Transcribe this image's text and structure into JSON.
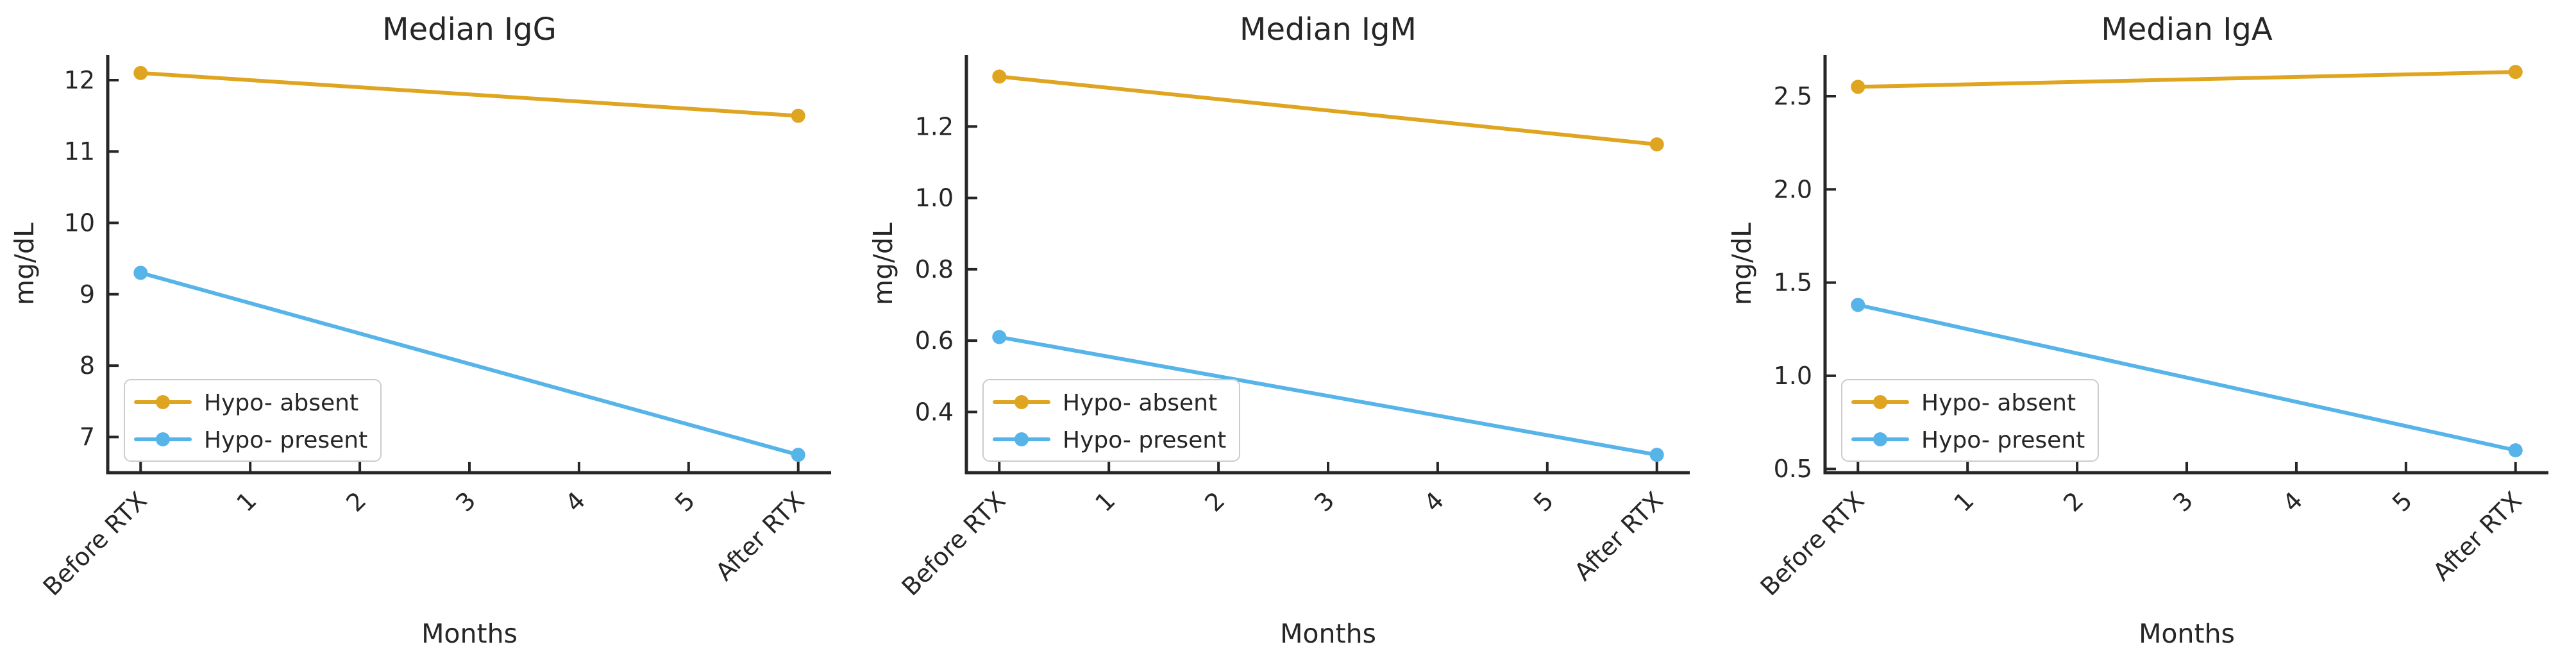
{
  "figure": {
    "background": "#ffffff",
    "text_color": "#262626",
    "spine_color": "#262626",
    "legend_border_color": "#cccccc",
    "legend_background": "rgba(255,255,255,0.85)"
  },
  "colors": {
    "hypo_absent": "#DFA520",
    "hypo_present": "#56B4E9"
  },
  "chart_data": [
    {
      "id": "median-igg",
      "type": "line",
      "title": "Median IgG",
      "xlabel": "Months",
      "ylabel": "mg/dL",
      "x_tick_positions": [
        0,
        1,
        2,
        3,
        4,
        5,
        6
      ],
      "x_tick_labels": [
        "Before RTX",
        "1",
        "2",
        "3",
        "4",
        "5",
        "After RTX"
      ],
      "xlim": [
        -0.3,
        6.3
      ],
      "ylim": [
        6.5,
        12.35
      ],
      "y_tick_values": [
        7,
        8,
        9,
        10,
        11,
        12
      ],
      "y_tick_labels": [
        "7",
        "8",
        "9",
        "10",
        "11",
        "12"
      ],
      "grid": false,
      "legend_position": "lower-left",
      "series": [
        {
          "name": "Hypo- absent",
          "color": "#DFA520",
          "x": [
            0,
            6
          ],
          "values": [
            12.1,
            11.5
          ]
        },
        {
          "name": "Hypo- present",
          "color": "#56B4E9",
          "x": [
            0,
            6
          ],
          "values": [
            9.3,
            6.75
          ]
        }
      ]
    },
    {
      "id": "median-igm",
      "type": "line",
      "title": "Median IgM",
      "xlabel": "Months",
      "ylabel": "mg/dL",
      "x_tick_positions": [
        0,
        1,
        2,
        3,
        4,
        5,
        6
      ],
      "x_tick_labels": [
        "Before RTX",
        "1",
        "2",
        "3",
        "4",
        "5",
        "After RTX"
      ],
      "xlim": [
        -0.3,
        6.3
      ],
      "ylim": [
        0.23,
        1.4
      ],
      "y_tick_values": [
        0.4,
        0.6,
        0.8,
        1.0,
        1.2
      ],
      "y_tick_labels": [
        "0.4",
        "0.6",
        "0.8",
        "1.0",
        "1.2"
      ],
      "grid": false,
      "legend_position": "lower-left",
      "series": [
        {
          "name": "Hypo- absent",
          "color": "#DFA520",
          "x": [
            0,
            6
          ],
          "values": [
            1.34,
            1.15
          ]
        },
        {
          "name": "Hypo- present",
          "color": "#56B4E9",
          "x": [
            0,
            6
          ],
          "values": [
            0.61,
            0.28
          ]
        }
      ]
    },
    {
      "id": "median-iga",
      "type": "line",
      "title": "Median IgA",
      "xlabel": "Months",
      "ylabel": "mg/dL",
      "x_tick_positions": [
        0,
        1,
        2,
        3,
        4,
        5,
        6
      ],
      "x_tick_labels": [
        "Before RTX",
        "1",
        "2",
        "3",
        "4",
        "5",
        "After RTX"
      ],
      "xlim": [
        -0.3,
        6.3
      ],
      "ylim": [
        0.48,
        2.72
      ],
      "y_tick_values": [
        0.5,
        1.0,
        1.5,
        2.0,
        2.5
      ],
      "y_tick_labels": [
        "0.5",
        "1.0",
        "1.5",
        "2.0",
        "2.5"
      ],
      "grid": false,
      "legend_position": "lower-left",
      "series": [
        {
          "name": "Hypo- absent",
          "color": "#DFA520",
          "x": [
            0,
            6
          ],
          "values": [
            2.55,
            2.63
          ]
        },
        {
          "name": "Hypo- present",
          "color": "#56B4E9",
          "x": [
            0,
            6
          ],
          "values": [
            1.38,
            0.6
          ]
        }
      ]
    }
  ]
}
